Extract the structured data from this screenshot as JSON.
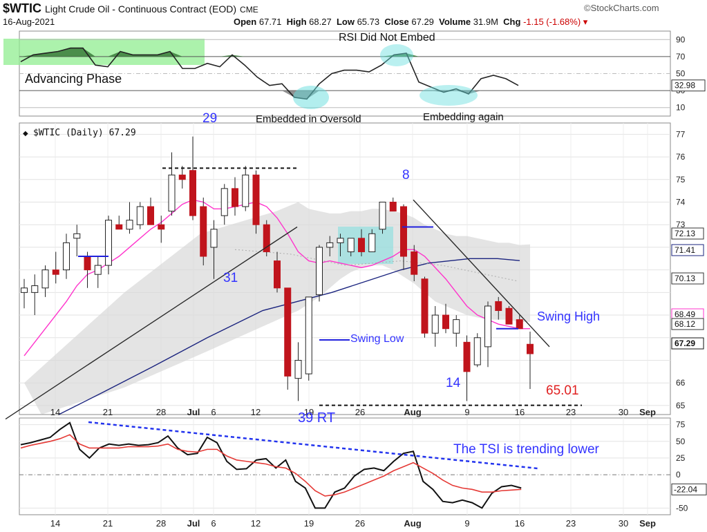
{
  "header": {
    "symbol": "$WTIC",
    "name": "Light Crude Oil - Continuous Contract (EOD)",
    "exchange": "CME",
    "date": "16-Aug-2021",
    "brand": "©StockCharts.com",
    "open_label": "Open",
    "open": "67.71",
    "high_label": "High",
    "high": "68.27",
    "low_label": "Low",
    "low": "65.73",
    "close_label": "Close",
    "close": "67.29",
    "volume_label": "Volume",
    "volume": "31.9M",
    "chg_label": "Chg",
    "chg": "-1.15 (-1.68%)"
  },
  "chart_data": [
    {
      "type": "line",
      "panel": "RSI",
      "yticks": [
        10,
        30,
        50,
        70,
        90
      ],
      "ylim": [
        0,
        100
      ],
      "last_value_label": "32.98",
      "series": [
        {
          "values": [
            64,
            72,
            74,
            76,
            80,
            80,
            60,
            58,
            76,
            72,
            72,
            72,
            76,
            56,
            56,
            62,
            58,
            72,
            60,
            46,
            36,
            38,
            22,
            20,
            38,
            50,
            54,
            54,
            52,
            60,
            72,
            74,
            40,
            34,
            28,
            32,
            26,
            44,
            48,
            44,
            36
          ]
        }
      ]
    },
    {
      "type": "candlestick",
      "panel": "price",
      "title": "$WTIC (Daily) 67.29",
      "ylim": [
        64.6,
        77.5
      ],
      "yticks": [
        65,
        66,
        67,
        68,
        69,
        70,
        71,
        72,
        73,
        74,
        75,
        76,
        77
      ],
      "xticks": [
        "14",
        "21",
        "28",
        "Jul",
        "6",
        "12",
        "19",
        "26",
        "Aug",
        "9",
        "16",
        "23",
        "30",
        "Sep"
      ],
      "price_labels": [
        "72.13",
        "71.41",
        "70.13",
        "68.49",
        "68.12",
        "67.29"
      ],
      "candles": [
        {
          "o": 70.0,
          "h": 70.6,
          "l": 69.3,
          "c": 70.2
        },
        {
          "o": 70.0,
          "h": 70.8,
          "l": 69.0,
          "c": 70.3
        },
        {
          "o": 70.2,
          "h": 71.2,
          "l": 69.8,
          "c": 71.0
        },
        {
          "o": 71.0,
          "h": 71.8,
          "l": 70.4,
          "c": 70.8
        },
        {
          "o": 71.0,
          "h": 72.6,
          "l": 70.6,
          "c": 72.2
        },
        {
          "o": 72.4,
          "h": 73.0,
          "l": 71.6,
          "c": 72.6
        },
        {
          "o": 71.6,
          "h": 71.8,
          "l": 70.2,
          "c": 71.0
        },
        {
          "o": 70.8,
          "h": 71.6,
          "l": 70.2,
          "c": 71.2
        },
        {
          "o": 71.2,
          "h": 73.4,
          "l": 70.8,
          "c": 73.2
        },
        {
          "o": 73.0,
          "h": 73.4,
          "l": 72.8,
          "c": 72.8
        },
        {
          "o": 72.8,
          "h": 74.0,
          "l": 72.6,
          "c": 73.2
        },
        {
          "o": 73.0,
          "h": 74.0,
          "l": 72.8,
          "c": 73.8
        },
        {
          "o": 73.8,
          "h": 74.2,
          "l": 73.0,
          "c": 73.0
        },
        {
          "o": 73.0,
          "h": 73.4,
          "l": 72.2,
          "c": 72.8
        },
        {
          "o": 73.6,
          "h": 76.2,
          "l": 73.4,
          "c": 75.2
        },
        {
          "o": 75.2,
          "h": 75.6,
          "l": 74.6,
          "c": 75.0
        },
        {
          "o": 75.4,
          "h": 76.9,
          "l": 73.2,
          "c": 73.4
        },
        {
          "o": 73.8,
          "h": 74.2,
          "l": 71.2,
          "c": 71.6
        },
        {
          "o": 72.0,
          "h": 73.2,
          "l": 70.6,
          "c": 72.8
        },
        {
          "o": 73.4,
          "h": 74.8,
          "l": 73.0,
          "c": 74.6
        },
        {
          "o": 74.6,
          "h": 75.1,
          "l": 73.4,
          "c": 73.8
        },
        {
          "o": 73.8,
          "h": 75.6,
          "l": 73.6,
          "c": 75.2
        },
        {
          "o": 75.2,
          "h": 75.4,
          "l": 72.6,
          "c": 73.0
        },
        {
          "o": 73.0,
          "h": 73.2,
          "l": 71.6,
          "c": 71.8
        },
        {
          "o": 71.4,
          "h": 71.8,
          "l": 70.0,
          "c": 70.2
        },
        {
          "o": 70.2,
          "h": 70.2,
          "l": 65.7,
          "c": 66.3
        },
        {
          "o": 66.2,
          "h": 67.8,
          "l": 65.2,
          "c": 67.0
        },
        {
          "o": 66.4,
          "h": 69.8,
          "l": 66.1,
          "c": 69.8
        },
        {
          "o": 69.9,
          "h": 72.1,
          "l": 69.6,
          "c": 72.0
        },
        {
          "o": 72.0,
          "h": 72.5,
          "l": 71.6,
          "c": 72.2
        },
        {
          "o": 72.2,
          "h": 72.6,
          "l": 71.6,
          "c": 72.4
        },
        {
          "o": 71.8,
          "h": 72.4,
          "l": 71.6,
          "c": 72.4
        },
        {
          "o": 72.4,
          "h": 72.8,
          "l": 71.6,
          "c": 71.8
        },
        {
          "o": 71.8,
          "h": 72.8,
          "l": 71.8,
          "c": 72.6
        },
        {
          "o": 72.8,
          "h": 74.0,
          "l": 72.6,
          "c": 74.0
        },
        {
          "o": 74.0,
          "h": 74.2,
          "l": 73.6,
          "c": 73.6
        },
        {
          "o": 73.8,
          "h": 73.9,
          "l": 71.0,
          "c": 71.6
        },
        {
          "o": 71.8,
          "h": 72.1,
          "l": 70.5,
          "c": 70.8
        },
        {
          "o": 70.6,
          "h": 70.7,
          "l": 68.0,
          "c": 68.2
        },
        {
          "o": 68.2,
          "h": 69.4,
          "l": 67.6,
          "c": 69.0
        },
        {
          "o": 69.0,
          "h": 69.5,
          "l": 68.2,
          "c": 68.4
        },
        {
          "o": 68.2,
          "h": 69.0,
          "l": 67.6,
          "c": 68.8
        },
        {
          "o": 67.8,
          "h": 68.1,
          "l": 65.2,
          "c": 66.5
        },
        {
          "o": 66.8,
          "h": 68.2,
          "l": 66.7,
          "c": 68.0
        },
        {
          "o": 67.6,
          "h": 69.6,
          "l": 66.7,
          "c": 69.4
        },
        {
          "o": 69.6,
          "h": 69.8,
          "l": 68.8,
          "c": 69.2
        },
        {
          "o": 69.3,
          "h": 69.4,
          "l": 68.6,
          "c": 68.6
        },
        {
          "o": 68.8,
          "h": 69.0,
          "l": 68.4,
          "c": 68.4
        },
        {
          "o": 67.71,
          "h": 68.27,
          "l": 65.73,
          "c": 67.29
        }
      ],
      "annotations": [
        "29",
        "31",
        "8",
        "14",
        "39 RT",
        "Swing Low",
        "Swing High",
        "65.01"
      ]
    },
    {
      "type": "line",
      "panel": "TSI",
      "ylim": [
        -60,
        85
      ],
      "yticks": [
        75,
        50,
        25,
        0,
        -50
      ],
      "last_value_label": "-22.04",
      "series": [
        {
          "values": [
            45,
            48,
            52,
            56,
            68,
            78,
            38,
            25,
            40,
            46,
            44,
            46,
            44,
            45,
            48,
            58,
            40,
            30,
            32,
            56,
            48,
            20,
            8,
            9,
            22,
            24,
            10,
            22,
            -10,
            -20,
            -50,
            -50,
            -26,
            -20,
            -2,
            8,
            10,
            6,
            20,
            32,
            35,
            -10,
            -22,
            -40,
            -42,
            -38,
            -42,
            -50,
            -28,
            -18,
            -16,
            -20
          ]
        },
        {
          "values": [
            40,
            44,
            47,
            50,
            54,
            60,
            46,
            40,
            40,
            40,
            40,
            42,
            42,
            42,
            43,
            46,
            38,
            35,
            34,
            38,
            38,
            28,
            22,
            20,
            18,
            16,
            12,
            10,
            2,
            -10,
            -24,
            -32,
            -30,
            -26,
            -20,
            -14,
            -8,
            -2,
            6,
            12,
            18,
            10,
            2,
            -8,
            -16,
            -20,
            -22,
            -26,
            -26,
            -24,
            -23,
            -22
          ]
        }
      ]
    }
  ],
  "annotations": {
    "rsi_title": "RSI Did Not Embed",
    "advancing_phase": "Advancing Phase",
    "embedded_oversold": "Embedded in Oversold",
    "embedding_again": "Embedding again",
    "tsi_note": "The TSI is trending lower"
  },
  "colors": {
    "rsi_line": "#222222",
    "rsi_fill": "#3a7d3a",
    "green_band": "#90ee90",
    "bull": "#ffffff",
    "bear": "#c0141c",
    "ma_pink": "#ff33cc",
    "ma_blue": "#1a237e",
    "band": "#d9d9d9",
    "blue_text": "#3333ff",
    "red_text": "#e02020",
    "tsi_black": "#111111",
    "tsi_red": "#e53935",
    "trendline": "#2a2a2a",
    "highlight": "#66dddd"
  }
}
